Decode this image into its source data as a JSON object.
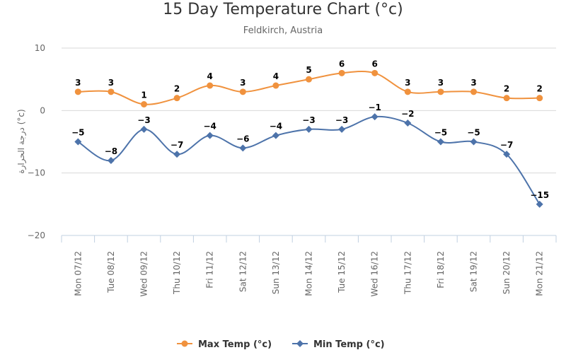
{
  "chart_data": {
    "type": "line",
    "title": "15 Day Temperature Chart (°c)",
    "subtitle": "Feldkirch, Austria",
    "ylabel": "درجة الحرارة (°c)",
    "xlabel": "",
    "ylim": [
      -20,
      10
    ],
    "yticks": [
      10,
      0,
      -10,
      -20
    ],
    "grid": true,
    "legend_position": "bottom",
    "categories": [
      "Mon 07/12",
      "Tue 08/12",
      "Wed 09/12",
      "Thu 10/12",
      "Fri 11/12",
      "Sat 12/12",
      "Sun 13/12",
      "Mon 14/12",
      "Tue 15/12",
      "Wed 16/12",
      "Thu 17/12",
      "Fri 18/12",
      "Sat 19/12",
      "Sun 20/12",
      "Mon 21/12"
    ],
    "series": [
      {
        "name": "Max Temp (°c)",
        "color": "#f0923e",
        "marker": "circle",
        "values": [
          3,
          3,
          1,
          2,
          4,
          3,
          4,
          5,
          6,
          6,
          3,
          3,
          3,
          2,
          2
        ]
      },
      {
        "name": "Min Temp (°c)",
        "color": "#4d73aa",
        "marker": "diamond",
        "values": [
          -5,
          -8,
          -3,
          -7,
          -4,
          -6,
          -4,
          -3,
          -3,
          -1,
          -2,
          -5,
          -5,
          -7,
          -15
        ]
      }
    ]
  }
}
